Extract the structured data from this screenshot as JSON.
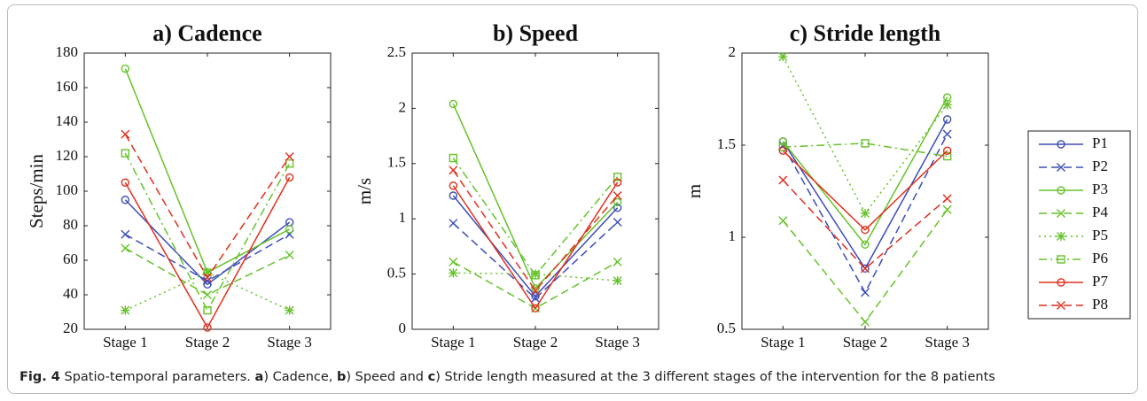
{
  "chart_data": [
    {
      "type": "line",
      "title": "a) Cadence",
      "y_label": "Steps/min",
      "categories": [
        "Stage 1",
        "Stage 2",
        "Stage 3"
      ],
      "ylim": [
        20,
        180
      ],
      "yticks": [
        20,
        40,
        60,
        80,
        100,
        120,
        140,
        160,
        180
      ],
      "series": [
        {
          "name": "P1",
          "color": "#3d4db7",
          "marker": "o",
          "dash": "solid",
          "values": [
            95,
            46,
            82
          ]
        },
        {
          "name": "P2",
          "color": "#3d4db7",
          "marker": "x",
          "dash": "dashed",
          "values": [
            75,
            48,
            75
          ]
        },
        {
          "name": "P3",
          "color": "#66c22a",
          "marker": "o",
          "dash": "solid",
          "values": [
            171,
            53,
            78
          ]
        },
        {
          "name": "P4",
          "color": "#66c22a",
          "marker": "x",
          "dash": "dashed",
          "values": [
            67,
            40,
            63
          ]
        },
        {
          "name": "P5",
          "color": "#66c22a",
          "marker": "*",
          "dash": "dotted",
          "values": [
            31,
            53,
            31
          ]
        },
        {
          "name": "P6",
          "color": "#66c22a",
          "marker": "s",
          "dash": "dashdot",
          "values": [
            122,
            31,
            116
          ]
        },
        {
          "name": "P7",
          "color": "#e0301e",
          "marker": "o",
          "dash": "solid",
          "values": [
            105,
            21,
            108
          ]
        },
        {
          "name": "P8",
          "color": "#e0301e",
          "marker": "x",
          "dash": "dashed",
          "values": [
            133,
            50,
            120
          ]
        }
      ]
    },
    {
      "type": "line",
      "title": "b) Speed",
      "y_label": "m/s",
      "categories": [
        "Stage 1",
        "Stage 2",
        "Stage 3"
      ],
      "ylim": [
        0,
        2.5
      ],
      "yticks": [
        0,
        0.5,
        1,
        1.5,
        2,
        2.5
      ],
      "series": [
        {
          "values": [
            1.21,
            0.3,
            1.1
          ]
        },
        {
          "values": [
            0.96,
            0.28,
            0.97
          ]
        },
        {
          "values": [
            2.04,
            0.37,
            1.15
          ]
        },
        {
          "values": [
            0.61,
            0.19,
            0.61
          ]
        },
        {
          "values": [
            0.51,
            0.5,
            0.44
          ]
        },
        {
          "values": [
            1.55,
            0.49,
            1.38
          ]
        },
        {
          "values": [
            1.3,
            0.19,
            1.33
          ]
        },
        {
          "values": [
            1.44,
            0.35,
            1.21
          ]
        }
      ]
    },
    {
      "type": "line",
      "title": "c) Stride length",
      "y_label": "m",
      "categories": [
        "Stage 1",
        "Stage 2",
        "Stage 3"
      ],
      "ylim": [
        0.5,
        2
      ],
      "yticks": [
        0.5,
        1,
        1.5,
        2
      ],
      "series": [
        {
          "values": [
            1.52,
            0.83,
            1.64
          ]
        },
        {
          "values": [
            1.5,
            0.7,
            1.56
          ]
        },
        {
          "values": [
            1.52,
            0.96,
            1.76
          ]
        },
        {
          "values": [
            1.09,
            0.54,
            1.15
          ]
        },
        {
          "values": [
            1.98,
            1.13,
            1.72
          ]
        },
        {
          "values": [
            1.49,
            1.51,
            1.44
          ]
        },
        {
          "values": [
            1.47,
            1.04,
            1.47
          ]
        },
        {
          "values": [
            1.31,
            0.83,
            1.21
          ]
        }
      ]
    }
  ],
  "caption": [
    {
      "text": "Fig. 4",
      "bold": true
    },
    {
      "text": " Spatio-temporal parameters. ",
      "bold": false
    },
    {
      "text": "a",
      "bold": true
    },
    {
      "text": ") Cadence, ",
      "bold": false
    },
    {
      "text": "b",
      "bold": true
    },
    {
      "text": ") Speed and ",
      "bold": false
    },
    {
      "text": "c",
      "bold": true
    },
    {
      "text": ") Stride length measured at the 3 different stages of the intervention for the 8 patients",
      "bold": false
    }
  ]
}
